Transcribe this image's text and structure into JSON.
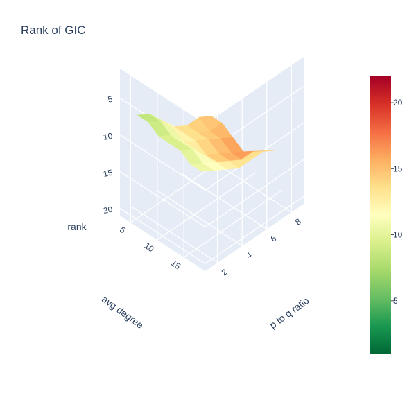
{
  "chart_data": {
    "type": "surface",
    "title": "Rank of GIC",
    "x_axis": {
      "label": "p to q ratio",
      "ticks": [
        "2",
        "4",
        "6",
        "8"
      ],
      "range": [
        1,
        9
      ]
    },
    "y_axis": {
      "label": "avg degree",
      "ticks": [
        "5",
        "10",
        "15"
      ],
      "range": [
        3,
        19
      ]
    },
    "z_axis": {
      "label": "rank",
      "ticks": [
        "5",
        "10",
        "15",
        "20"
      ],
      "range": [
        1,
        21
      ],
      "reversed": true
    },
    "colorbar": {
      "colorscale": "RdYlGn reversed",
      "ticks": [
        "5",
        "10",
        "15",
        "20"
      ],
      "range": [
        1,
        22
      ],
      "stops": [
        "#006837",
        "#1a9850",
        "#66bd63",
        "#a6d96a",
        "#d9ef8b",
        "#ffffbf",
        "#fee08b",
        "#fdae61",
        "#f46d43",
        "#d73027",
        "#a50026"
      ]
    },
    "x": [
      2,
      3,
      4,
      5,
      6,
      7,
      8
    ],
    "y": [
      4,
      6,
      8,
      10,
      12,
      14,
      16
    ],
    "z": [
      [
        8,
        9,
        11,
        13,
        14,
        14,
        15
      ],
      [
        8,
        9,
        11,
        13,
        14,
        15,
        15
      ],
      [
        9,
        10,
        12,
        13,
        14,
        15,
        16
      ],
      [
        9,
        10,
        12,
        14,
        15,
        16,
        17
      ],
      [
        9,
        10,
        12,
        14,
        15,
        16,
        16
      ],
      [
        10,
        11,
        12,
        13,
        14,
        14,
        15
      ],
      [
        10,
        11,
        12,
        13,
        13,
        13,
        14
      ]
    ]
  }
}
